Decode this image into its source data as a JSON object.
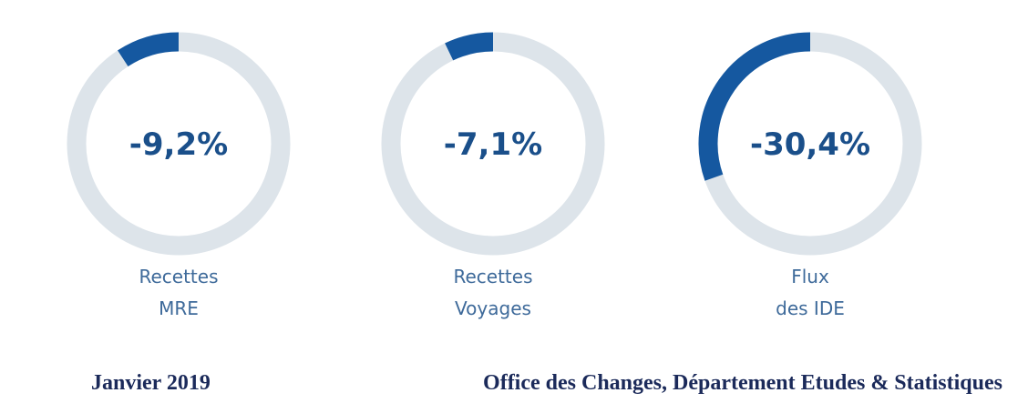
{
  "chart_data": {
    "type": "gauge",
    "categories": [
      [
        "Recettes",
        "MRE"
      ],
      [
        "Recettes",
        "Voyages"
      ],
      [
        "Flux",
        "des IDE"
      ]
    ],
    "values": [
      -9.2,
      -7.1,
      -30.4
    ],
    "value_labels": [
      "-9,2%",
      "-7,1%",
      "-30,4%"
    ],
    "ylim": [
      -100,
      0
    ],
    "color": "#1558a0",
    "track_color": "#dde4ea"
  },
  "footer": {
    "date": "Janvier 2019",
    "source": "Office des Changes, Département Etudes & Statistiques"
  }
}
